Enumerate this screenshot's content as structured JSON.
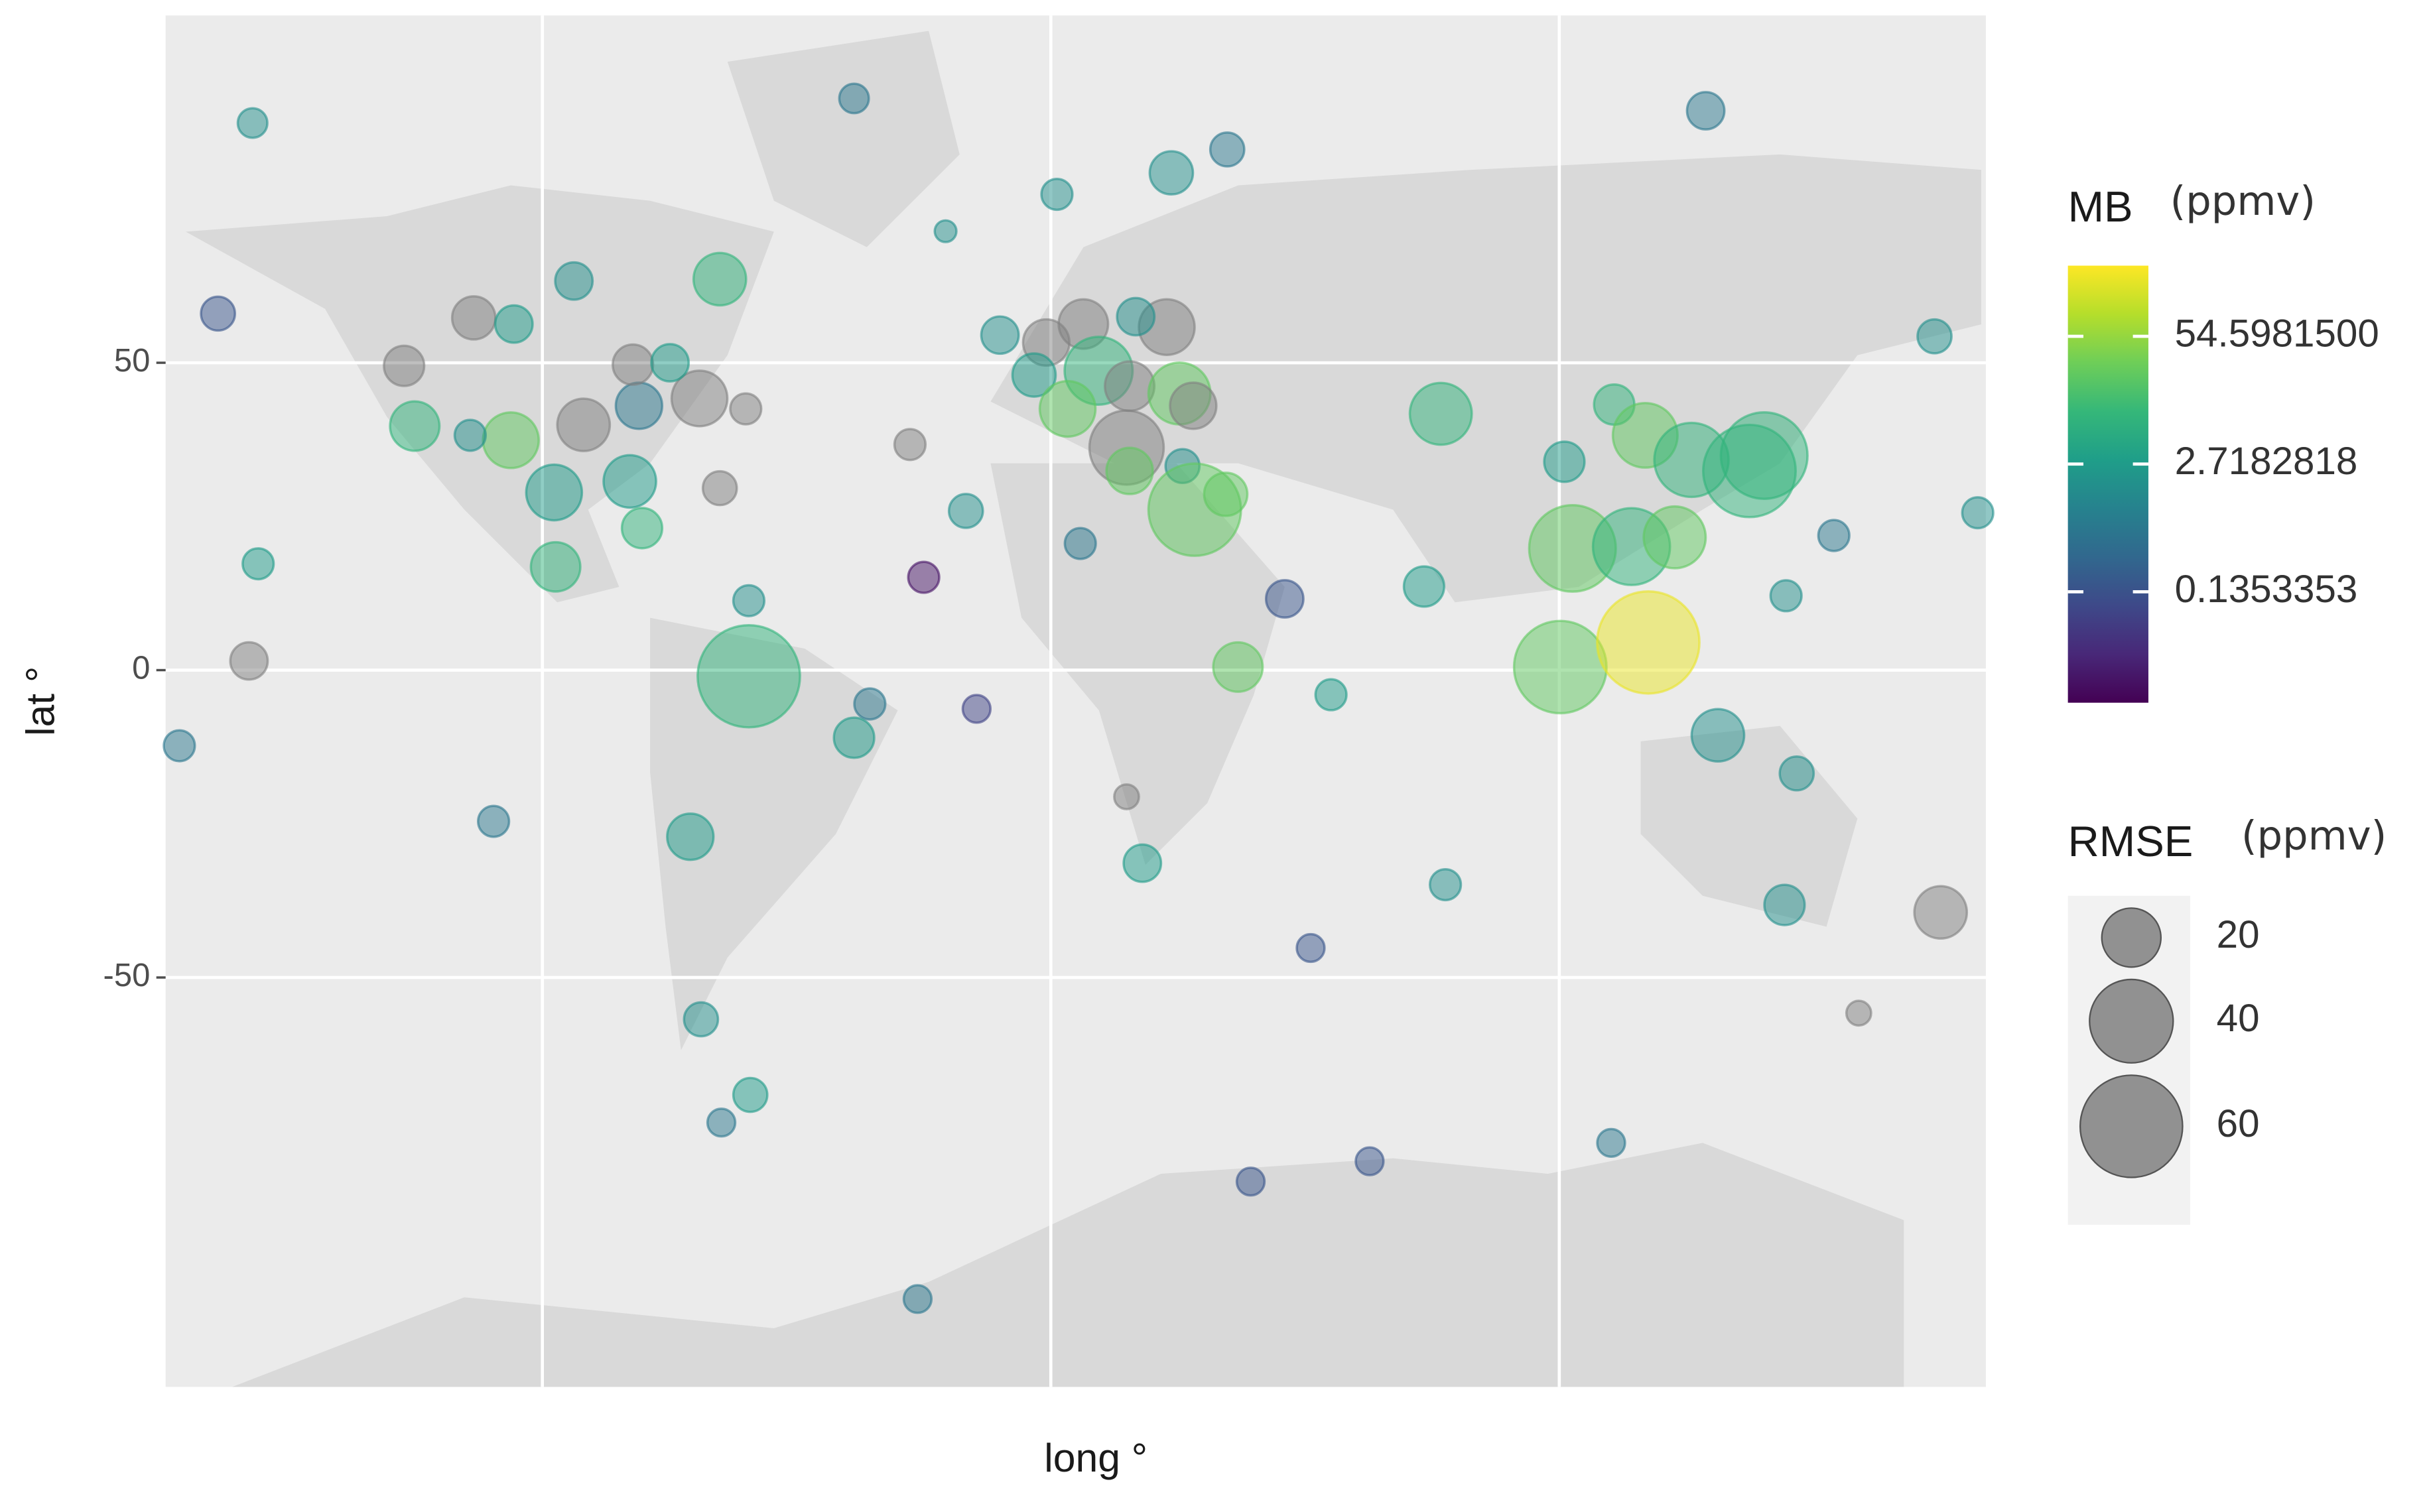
{
  "chart_data": {
    "type": "bubble",
    "x_label": "long °",
    "y_label": "lat °",
    "xlim": [
      -174.1,
      183.9
    ],
    "ylim": [
      -116.6,
      106.5
    ],
    "yticks": [
      50,
      0,
      -50
    ],
    "xgrid_lines": [
      -100,
      0,
      100
    ],
    "grid": true,
    "x": [
      -157,
      -38.7,
      128.8,
      34.7,
      23.7,
      1.2,
      -20.7,
      -163.8,
      -93.8,
      -65.1,
      -127.2,
      -113.5,
      -105.6,
      -125.1,
      -106.2,
      -114.2,
      -97.7,
      -82.8,
      -91.9,
      -81,
      -82.2,
      -69.1,
      -60,
      -74.9,
      -65.1,
      -80.4,
      -97.4,
      -155.9,
      -157.7,
      -171.4,
      -109.6,
      -59.4,
      -59.4,
      -35.6,
      -38.7,
      -70.9,
      -68.8,
      -59.1,
      -64.8,
      -26.2,
      -27.7,
      -25,
      -16.7,
      -14.6,
      5.8,
      -10,
      -0.9,
      6.4,
      22.8,
      16.7,
      -3.3,
      9.4,
      3.3,
      15.5,
      25.3,
      28,
      14.9,
      15.5,
      25.9,
      28.3,
      34.4,
      18,
      14.9,
      36.8,
      46,
      55.1,
      51.1,
      39.3,
      62.7,
      77.6,
      76.7,
      73.4,
      101,
      110.8,
      116.9,
      102.6,
      114.2,
      122.7,
      126,
      137.4,
      140.3,
      100.2,
      117.5,
      131.2,
      146.7,
      144.3,
      144.6,
      154,
      173.8,
      182.3,
      175,
      158.9,
      110.2
    ],
    "y": [
      89,
      93,
      91,
      84.7,
      80.9,
      77.4,
      71.4,
      58,
      63.3,
      63.6,
      49.5,
      57.3,
      56.3,
      39.7,
      37.4,
      38.2,
      28.9,
      30.7,
      39.9,
      43,
      49.7,
      44.2,
      42.5,
      50,
      29.6,
      23.1,
      16.8,
      17.3,
      1.5,
      -12.3,
      -24.6,
      11.3,
      -1,
      -5.5,
      -11,
      -27.1,
      -56.8,
      -69.1,
      -73.6,
      -102.3,
      36.7,
      15.1,
      25.9,
      -6.3,
      20.6,
      54.5,
      53.3,
      56.3,
      55.8,
      57.5,
      48,
      48.7,
      42.5,
      46.2,
      45,
      43,
      36.2,
      32.4,
      33.2,
      26.1,
      28.6,
      -31.4,
      -20.6,
      0.5,
      11.6,
      -4,
      -45.2,
      -83.2,
      -79.9,
      -34.9,
      41.7,
      13.6,
      33.9,
      43.2,
      38.2,
      19.8,
      20.1,
      21.6,
      34.2,
      32.4,
      34.9,
      0.5,
      4.5,
      -10.6,
      -16.8,
      -38.2,
      12.1,
      21.9,
      54.3,
      25.6,
      -39.4,
      -55.8,
      -76.9
    ],
    "size": [
      5,
      5,
      8,
      6.6,
      10.7,
      5.5,
      2.7,
      6.6,
      8,
      15.8,
      9.3,
      10.7,
      8,
      14,
      17.8,
      5.5,
      17.8,
      15.8,
      15.8,
      12.3,
      9.3,
      17.8,
      5.5,
      8,
      6.6,
      9.3,
      14,
      5.5,
      8,
      5.5,
      5.5,
      5.5,
      60,
      5.5,
      9.3,
      12.3,
      6.6,
      6.6,
      4.4,
      4.4,
      5.5,
      5.5,
      6.6,
      4.4,
      5.5,
      8,
      12.3,
      14,
      17.8,
      8,
      10.7,
      26.5,
      17.8,
      14,
      22,
      12.3,
      31.6,
      12.3,
      6.6,
      49,
      10.7,
      8,
      3.5,
      14,
      8,
      5.5,
      4.4,
      4.4,
      4.4,
      5.5,
      22,
      9.3,
      9.3,
      9.3,
      24,
      43,
      34,
      22,
      31.6,
      49,
      43,
      49,
      60,
      15.8,
      6.6,
      9.3,
      5.5,
      5.5,
      6.6,
      5.5,
      15.8,
      3.5,
      4.4
    ],
    "mb": [
      1.6,
      0.6,
      0.6,
      0.6,
      1.6,
      1.6,
      1.6,
      0.15,
      1.6,
      8,
      null,
      null,
      2.7,
      8,
      22,
      1.6,
      2.7,
      2.7,
      null,
      0.6,
      null,
      null,
      null,
      2.7,
      null,
      8,
      8,
      2.7,
      null,
      0.6,
      0.6,
      1.6,
      8,
      0.6,
      2.7,
      2.7,
      1.6,
      2.7,
      0.6,
      0.6,
      null,
      0.017,
      1.6,
      0.08,
      0.6,
      1.6,
      null,
      null,
      null,
      1.6,
      2.7,
      8,
      22,
      null,
      22,
      null,
      null,
      22,
      1.6,
      22,
      22,
      2.7,
      null,
      22,
      0.15,
      2.7,
      0.15,
      0.15,
      0.15,
      1.6,
      8,
      2.7,
      2.7,
      8,
      22,
      22,
      8,
      22,
      8,
      8,
      8,
      22,
      210,
      1.6,
      1.6,
      1.6,
      1.6,
      0.6,
      1.6,
      1.6,
      null,
      null,
      0.6
    ],
    "color_legend_title": "MB",
    "color_legend_unit": "(ppmv)",
    "color_scale": {
      "lim": [
        0.01,
        287
      ],
      "log": true,
      "na_color": "#808080",
      "colors": [
        "#440154",
        "#482878",
        "#3e4989",
        "#31688e",
        "#26828e",
        "#1f9e89",
        "#35b779",
        "#6ece58",
        "#b5de2b",
        "#fde725"
      ],
      "ticks": [
        0.1353353,
        2.7182818,
        {
          "value": 54.59815,
          "label": "54.5981500"
        }
      ]
    },
    "size_legend_title": "RMSE",
    "size_legend_unit": "(ppmv)",
    "size_legend_values": [
      20,
      40,
      60
    ]
  }
}
